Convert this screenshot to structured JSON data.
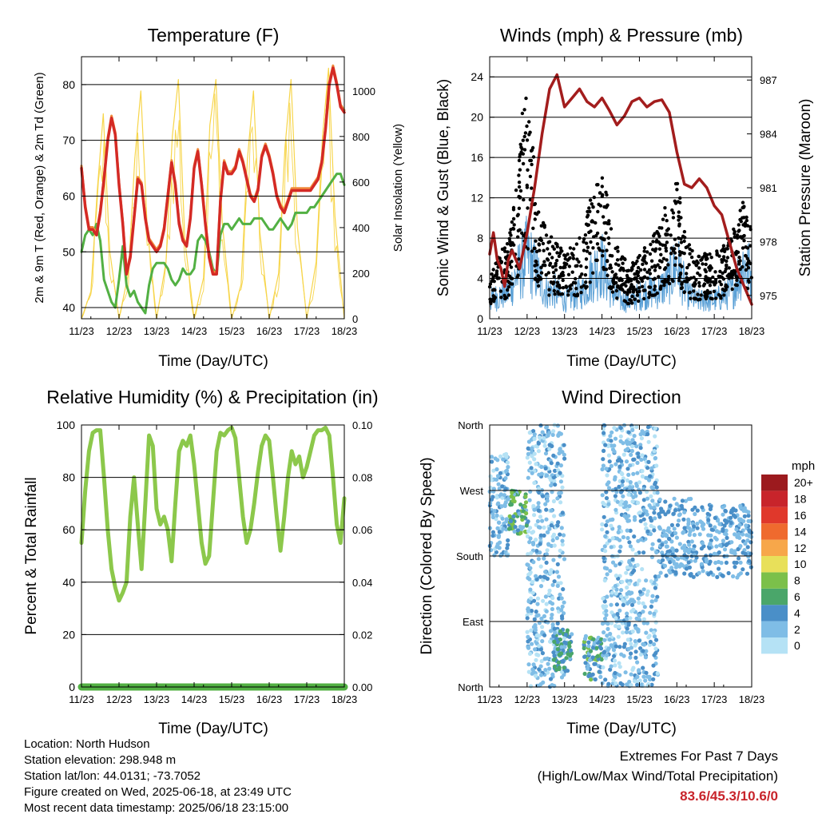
{
  "time_ticks": [
    "11/23",
    "12/23",
    "13/23",
    "14/23",
    "15/23",
    "16/23",
    "17/23",
    "18/23"
  ],
  "panels": {
    "temperature": {
      "title": "Temperature (F)",
      "xlabel": "Time (Day/UTC)",
      "ylabel_left": "2m & 9m T (Red, Orange) & 2m Td (Green)",
      "ylabel_right": "Solar Insolation (Yellow)",
      "yticks_left": [
        "40",
        "50",
        "60",
        "70",
        "80"
      ],
      "yticks_right": [
        "0",
        "200",
        "400",
        "600",
        "800",
        "1000"
      ]
    },
    "winds": {
      "title": "Winds (mph) & Pressure (mb)",
      "xlabel": "Time (Day/UTC)",
      "ylabel_left": "Sonic Wind & Gust (Blue, Black)",
      "ylabel_right": "Station Pressure (Maroon)",
      "yticks_left": [
        "0",
        "4",
        "8",
        "12",
        "16",
        "20",
        "24"
      ],
      "yticks_right": [
        "975",
        "978",
        "981",
        "984",
        "987"
      ]
    },
    "humidity": {
      "title": "Relative Humidity (%) & Precipitation (in)",
      "xlabel": "Time (Day/UTC)",
      "ylabel_left": "Percent & Total Rainfall",
      "yticks_left": [
        "0",
        "20",
        "40",
        "60",
        "80",
        "100"
      ],
      "yticks_right": [
        "0.00",
        "0.02",
        "0.04",
        "0.06",
        "0.08",
        "0.10"
      ]
    },
    "direction": {
      "title": "Wind Direction",
      "xlabel": "Time (Day/UTC)",
      "ylabel_left": "Direction (Colored By Speed)",
      "yticks_left": [
        "North",
        "East",
        "South",
        "West",
        "North"
      ],
      "legend_title": "mph",
      "legend_labels": [
        "0",
        "2",
        "4",
        "6",
        "8",
        "10",
        "12",
        "14",
        "16",
        "18",
        "20+"
      ],
      "legend_colors": [
        "#b5e2f5",
        "#7fbde6",
        "#4a8fc8",
        "#4aa66a",
        "#7bc04a",
        "#e8e05a",
        "#f7a74a",
        "#ef6a2e",
        "#e0382b",
        "#c8242b",
        "#9c1a1e"
      ]
    }
  },
  "info": {
    "location": "Location: North Hudson",
    "elevation": "Station elevation: 298.948 m",
    "latlon": "Station lat/lon: 44.0131; -73.7052",
    "created": "Figure created on Wed, 2025-06-18, at 23:49 UTC",
    "recent": "Most recent data timestamp: 2025/06/18 23:15:00"
  },
  "extremes": {
    "title": "Extremes For Past 7 Days",
    "subtitle": "(High/Low/Max Wind/Total Precipitation)",
    "values": "83.6/45.3/10.6/0"
  },
  "chart_data": [
    {
      "type": "line",
      "title": "Temperature (F)",
      "xlabel": "Time (Day/UTC)",
      "ylabel": "2m & 9m T (Red, Orange) & 2m Td (Green)",
      "xlim": [
        0,
        7
      ],
      "ylim": [
        38,
        85
      ],
      "y2lim": [
        0,
        1150
      ],
      "series": [
        {
          "name": "2m T",
          "color": "#d42a25",
          "x": [
            0,
            0.1,
            0.2,
            0.3,
            0.4,
            0.5,
            0.6,
            0.7,
            0.8,
            0.9,
            1.0,
            1.1,
            1.2,
            1.3,
            1.4,
            1.5,
            1.6,
            1.7,
            1.8,
            1.9,
            2.0,
            2.1,
            2.2,
            2.3,
            2.4,
            2.5,
            2.6,
            2.7,
            2.8,
            2.9,
            3.0,
            3.1,
            3.2,
            3.3,
            3.4,
            3.5,
            3.6,
            3.7,
            3.8,
            3.9,
            4.0,
            4.1,
            4.2,
            4.3,
            4.4,
            4.5,
            4.6,
            4.7,
            4.8,
            4.9,
            5.0,
            5.1,
            5.2,
            5.3,
            5.4,
            5.5,
            5.6,
            5.7,
            5.8,
            5.9,
            6.0,
            6.1,
            6.2,
            6.3,
            6.4,
            6.5,
            6.6,
            6.7,
            6.8,
            6.9,
            7.0
          ],
          "y": [
            65,
            58,
            54,
            54,
            53,
            57,
            63,
            70,
            74,
            71,
            62,
            55,
            46,
            49,
            56,
            63,
            62,
            56,
            52,
            51,
            50,
            51,
            54,
            60,
            66,
            62,
            55,
            52,
            51,
            56,
            65,
            68,
            62,
            55,
            49,
            46,
            46,
            59,
            66,
            64,
            64,
            65,
            68,
            66,
            63,
            60,
            59,
            61,
            67,
            69,
            67,
            64,
            60,
            58,
            57,
            59,
            61,
            61,
            61,
            61,
            61,
            61,
            62,
            63,
            66,
            72,
            80,
            83,
            80,
            76,
            75
          ]
        },
        {
          "name": "2m Td",
          "color": "#52b043",
          "x": [
            0,
            0.1,
            0.2,
            0.3,
            0.4,
            0.5,
            0.6,
            0.7,
            0.8,
            0.9,
            1.0,
            1.1,
            1.2,
            1.3,
            1.4,
            1.5,
            1.6,
            1.7,
            1.8,
            1.9,
            2.0,
            2.1,
            2.2,
            2.3,
            2.4,
            2.5,
            2.6,
            2.7,
            2.8,
            2.9,
            3.0,
            3.1,
            3.2,
            3.3,
            3.4,
            3.5,
            3.6,
            3.7,
            3.8,
            3.9,
            4.0,
            4.1,
            4.2,
            4.3,
            4.4,
            4.5,
            4.6,
            4.7,
            4.8,
            4.9,
            5.0,
            5.1,
            5.2,
            5.3,
            5.4,
            5.5,
            5.6,
            5.7,
            5.8,
            5.9,
            6.0,
            6.1,
            6.2,
            6.3,
            6.4,
            6.5,
            6.6,
            6.7,
            6.8,
            6.9,
            7.0
          ],
          "y": [
            50,
            53,
            54,
            53,
            55,
            52,
            45,
            43,
            41,
            40,
            45,
            51,
            44,
            42,
            43,
            41,
            40,
            39,
            44,
            47,
            48,
            48,
            48,
            47,
            45,
            44,
            45,
            47,
            46,
            46,
            47,
            52,
            53,
            52,
            50,
            47,
            46,
            53,
            55,
            55,
            54,
            55,
            56,
            55,
            55,
            55,
            56,
            56,
            56,
            55,
            54,
            54,
            55,
            56,
            55,
            54,
            55,
            57,
            57,
            57,
            57,
            58,
            58,
            59,
            60,
            61,
            62,
            63,
            64,
            64,
            62
          ]
        },
        {
          "name": "Solar Insolation",
          "axis": "right",
          "color": "#f7d54a",
          "x": [
            0,
            0.25,
            0.42,
            0.58,
            0.75,
            1.0,
            1.25,
            1.42,
            1.58,
            1.75,
            2.0,
            2.25,
            2.42,
            2.58,
            2.75,
            3.0,
            3.25,
            3.42,
            3.58,
            3.75,
            4.0,
            4.25,
            4.42,
            4.58,
            4.75,
            5.0,
            5.25,
            5.42,
            5.58,
            5.75,
            6.0,
            6.25,
            6.42,
            6.58,
            6.75,
            7.0
          ],
          "y": [
            0,
            120,
            560,
            900,
            300,
            0,
            200,
            700,
            1000,
            400,
            0,
            250,
            800,
            1050,
            350,
            0,
            180,
            850,
            1050,
            420,
            0,
            150,
            700,
            1000,
            380,
            0,
            200,
            750,
            1050,
            400,
            0,
            250,
            800,
            1100,
            450,
            0
          ]
        }
      ]
    },
    {
      "type": "line",
      "title": "Winds (mph) & Pressure (mb)",
      "xlabel": "Time (Day/UTC)",
      "ylabel": "Sonic Wind & Gust (Blue, Black)",
      "xlim": [
        0,
        7
      ],
      "ylim": [
        0,
        26
      ],
      "y2lim": [
        973.7,
        988.3
      ],
      "series": [
        {
          "name": "Sonic Wind",
          "color": "#5aa0d6",
          "x": [
            0,
            0.25,
            0.5,
            0.75,
            1.0,
            1.25,
            1.5,
            1.75,
            2.0,
            2.25,
            2.5,
            2.75,
            3.0,
            3.25,
            3.5,
            3.75,
            4.0,
            4.25,
            4.5,
            4.75,
            5.0,
            5.25,
            5.5,
            5.75,
            6.0,
            6.25,
            6.5,
            6.75,
            7.0
          ],
          "y": [
            2,
            2.5,
            3,
            5,
            7,
            5,
            3,
            3,
            2,
            2.5,
            3,
            5,
            6,
            3,
            2,
            2,
            2.5,
            3,
            3,
            4,
            6,
            3,
            2,
            2,
            2,
            2.5,
            3,
            6,
            5
          ]
        },
        {
          "name": "Gust",
          "color": "#000000",
          "x": [
            0,
            0.25,
            0.5,
            0.75,
            1.0,
            1.25,
            1.5,
            1.75,
            2.0,
            2.25,
            2.5,
            2.75,
            3.0,
            3.25,
            3.5,
            3.75,
            4.0,
            4.25,
            4.5,
            4.75,
            5.0,
            5.25,
            5.5,
            5.75,
            6.0,
            6.25,
            6.5,
            6.75,
            7.0
          ],
          "y": [
            4,
            5,
            6,
            12,
            20,
            9,
            7,
            6,
            5,
            6,
            7,
            10,
            12,
            7,
            5,
            4,
            5,
            6,
            7,
            9,
            11,
            6,
            5,
            5,
            5,
            6,
            7,
            9,
            8
          ]
        },
        {
          "name": "Station Pressure",
          "axis": "right",
          "color": "#a31d1d",
          "x": [
            0,
            0.1,
            0.2,
            0.3,
            0.4,
            0.5,
            0.6,
            0.7,
            0.8,
            0.9,
            1.0,
            1.2,
            1.4,
            1.6,
            1.8,
            2.0,
            2.2,
            2.4,
            2.6,
            2.8,
            3.0,
            3.2,
            3.4,
            3.6,
            3.8,
            4.0,
            4.2,
            4.4,
            4.6,
            4.8,
            5.0,
            5.2,
            5.4,
            5.6,
            5.8,
            6.0,
            6.2,
            6.4,
            6.6,
            6.8,
            7.0
          ],
          "y": [
            977.3,
            978.5,
            977.0,
            976.5,
            975.5,
            977.0,
            977.5,
            977.0,
            976.5,
            977.5,
            978.5,
            981,
            984,
            986.5,
            987.3,
            985.5,
            986,
            986.5,
            985.8,
            985.5,
            986.0,
            985.3,
            984.5,
            985,
            985.8,
            986.0,
            985.5,
            985.8,
            985.9,
            985.2,
            983.0,
            981.2,
            981.0,
            981.5,
            981.0,
            980.0,
            979.5,
            978.0,
            976.5,
            975.5,
            974.5
          ]
        }
      ]
    },
    {
      "type": "line",
      "title": "Relative Humidity (%) & Precipitation (in)",
      "xlabel": "Time (Day/UTC)",
      "ylabel": "Percent & Total Rainfall",
      "xlim": [
        0,
        7
      ],
      "ylim": [
        0,
        100
      ],
      "y2lim": [
        0,
        0.1
      ],
      "series": [
        {
          "name": "Relative Humidity",
          "color": "#8cc84b",
          "x": [
            0,
            0.1,
            0.2,
            0.3,
            0.4,
            0.5,
            0.6,
            0.7,
            0.8,
            0.9,
            1.0,
            1.1,
            1.2,
            1.3,
            1.4,
            1.5,
            1.6,
            1.7,
            1.8,
            1.9,
            2.0,
            2.1,
            2.2,
            2.3,
            2.4,
            2.5,
            2.6,
            2.7,
            2.8,
            2.9,
            3.0,
            3.1,
            3.2,
            3.3,
            3.4,
            3.5,
            3.6,
            3.7,
            3.8,
            3.9,
            4.0,
            4.1,
            4.2,
            4.3,
            4.4,
            4.5,
            4.6,
            4.7,
            4.8,
            4.9,
            5.0,
            5.1,
            5.2,
            5.3,
            5.4,
            5.5,
            5.6,
            5.7,
            5.8,
            5.9,
            6.0,
            6.1,
            6.2,
            6.3,
            6.4,
            6.5,
            6.6,
            6.7,
            6.8,
            6.9,
            7.0
          ],
          "y": [
            55,
            75,
            90,
            97,
            98,
            98,
            80,
            60,
            45,
            38,
            33,
            36,
            40,
            65,
            80,
            62,
            45,
            70,
            96,
            92,
            68,
            62,
            65,
            60,
            48,
            70,
            90,
            94,
            92,
            96,
            85,
            70,
            55,
            47,
            50,
            70,
            90,
            97,
            96,
            98,
            99,
            95,
            80,
            65,
            55,
            60,
            70,
            82,
            92,
            96,
            94,
            80,
            65,
            52,
            65,
            80,
            90,
            85,
            88,
            80,
            84,
            90,
            96,
            98,
            98,
            99,
            96,
            80,
            62,
            55,
            72
          ]
        },
        {
          "name": "Total Rainfall",
          "axis": "right",
          "color": "#52b043",
          "x": [
            0,
            7
          ],
          "y": [
            0,
            0
          ]
        }
      ]
    },
    {
      "type": "scatter",
      "title": "Wind Direction",
      "xlabel": "Time (Day/UTC)",
      "ylabel": "Direction (Colored By Speed)",
      "xlim": [
        0,
        7
      ],
      "ylim": [
        0,
        360
      ],
      "note": "points colored by wind speed (mph), 0 to 20+",
      "clusters": [
        {
          "x": [
            0,
            0.5
          ],
          "dir": [
            180,
            320
          ],
          "speed": [
            0,
            4
          ]
        },
        {
          "x": [
            0.5,
            1.0
          ],
          "dir": [
            210,
            270
          ],
          "speed": [
            2,
            9
          ]
        },
        {
          "x": [
            1.0,
            2.0
          ],
          "dir": [
            0,
            360
          ],
          "speed": [
            0,
            4
          ]
        },
        {
          "x": [
            1.7,
            2.2
          ],
          "dir": [
            20,
            80
          ],
          "speed": [
            2,
            7
          ]
        },
        {
          "x": [
            2.5,
            3.0
          ],
          "dir": [
            10,
            70
          ],
          "speed": [
            2,
            8
          ]
        },
        {
          "x": [
            3.0,
            4.5
          ],
          "dir": [
            0,
            360
          ],
          "speed": [
            0,
            4
          ]
        },
        {
          "x": [
            4.5,
            5.4
          ],
          "dir": [
            150,
            260
          ],
          "speed": [
            1,
            5
          ]
        },
        {
          "x": [
            5.4,
            7.0
          ],
          "dir": [
            150,
            250
          ],
          "speed": [
            1,
            5
          ]
        }
      ]
    }
  ]
}
